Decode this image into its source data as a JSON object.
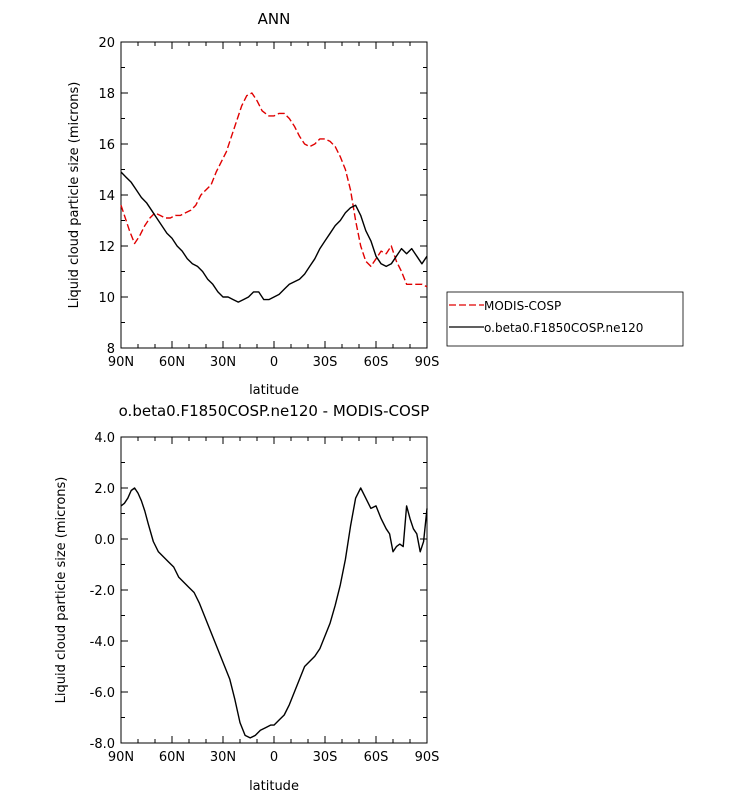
{
  "chart_data": [
    {
      "type": "line",
      "title": "ANN",
      "xlabel": "latitude",
      "ylabel": "Liquid cloud particle size (microns)",
      "x_ticks": [
        -90,
        -60,
        -30,
        0,
        30,
        60,
        90
      ],
      "x_tick_labels": [
        "90N",
        "60N",
        "30N",
        "0",
        "30S",
        "60S",
        "90S"
      ],
      "xlim": [
        -90,
        90
      ],
      "ylim": [
        8,
        20
      ],
      "y_ticks": [
        8,
        10,
        12,
        14,
        16,
        18,
        20
      ],
      "y_tick_labels": [
        "8",
        "10",
        "12",
        "14",
        "16",
        "18",
        "20"
      ],
      "legend": "outside-right",
      "series": [
        {
          "name": "MODIS-COSP",
          "color": "#e00000",
          "dash": "dashed",
          "x": [
            -90,
            -88,
            -85,
            -82,
            -79,
            -76,
            -73,
            -70,
            -67,
            -64,
            -61,
            -58,
            -55,
            -52,
            -49,
            -46,
            -43,
            -40,
            -37,
            -34,
            -31,
            -28,
            -25,
            -22,
            -19,
            -16,
            -13,
            -10,
            -7,
            -5,
            -3,
            0,
            3,
            6,
            9,
            12,
            15,
            18,
            21,
            24,
            27,
            30,
            33,
            36,
            39,
            42,
            45,
            48,
            51,
            54,
            57,
            60,
            63,
            66,
            69,
            72,
            75,
            78,
            81,
            84,
            87,
            90
          ],
          "y": [
            13.6,
            13.2,
            12.6,
            12.1,
            12.4,
            12.8,
            13.1,
            13.3,
            13.2,
            13.1,
            13.1,
            13.2,
            13.2,
            13.3,
            13.4,
            13.6,
            14.0,
            14.2,
            14.4,
            14.9,
            15.3,
            15.7,
            16.3,
            16.9,
            17.5,
            17.9,
            18.0,
            17.7,
            17.3,
            17.2,
            17.1,
            17.1,
            17.2,
            17.2,
            17.0,
            16.7,
            16.3,
            16.0,
            15.9,
            16.0,
            16.2,
            16.2,
            16.1,
            15.9,
            15.5,
            15.0,
            14.2,
            13.0,
            12.0,
            11.4,
            11.2,
            11.5,
            11.8,
            11.7,
            12.0,
            11.4,
            11.0,
            10.5,
            10.5,
            10.5,
            10.5,
            10.4
          ]
        },
        {
          "name": "o.beta0.F1850COSP.ne120",
          "color": "#000000",
          "dash": "solid",
          "x": [
            -90,
            -87,
            -84,
            -81,
            -78,
            -75,
            -72,
            -69,
            -66,
            -63,
            -60,
            -57,
            -54,
            -51,
            -48,
            -45,
            -42,
            -39,
            -36,
            -33,
            -30,
            -27,
            -24,
            -21,
            -18,
            -15,
            -12,
            -9,
            -6,
            -3,
            0,
            3,
            6,
            9,
            12,
            15,
            18,
            21,
            24,
            27,
            30,
            33,
            36,
            39,
            42,
            45,
            48,
            51,
            54,
            57,
            60,
            63,
            66,
            69,
            72,
            75,
            78,
            81,
            84,
            87,
            90
          ],
          "y": [
            14.9,
            14.7,
            14.5,
            14.2,
            13.9,
            13.7,
            13.4,
            13.1,
            12.8,
            12.5,
            12.3,
            12.0,
            11.8,
            11.5,
            11.3,
            11.2,
            11.0,
            10.7,
            10.5,
            10.2,
            10.0,
            10.0,
            9.9,
            9.8,
            9.9,
            10.0,
            10.2,
            10.2,
            9.9,
            9.9,
            10.0,
            10.1,
            10.3,
            10.5,
            10.6,
            10.7,
            10.9,
            11.2,
            11.5,
            11.9,
            12.2,
            12.5,
            12.8,
            13.0,
            13.3,
            13.5,
            13.6,
            13.2,
            12.6,
            12.2,
            11.6,
            11.3,
            11.2,
            11.3,
            11.6,
            11.9,
            11.7,
            11.9,
            11.6,
            11.3,
            11.6
          ]
        }
      ]
    },
    {
      "type": "line",
      "title": "o.beta0.F1850COSP.ne120 - MODIS-COSP",
      "xlabel": "latitude",
      "ylabel": "Liquid cloud particle size (microns)",
      "x_ticks": [
        -90,
        -60,
        -30,
        0,
        30,
        60,
        90
      ],
      "x_tick_labels": [
        "90N",
        "60N",
        "30N",
        "0",
        "30S",
        "60S",
        "90S"
      ],
      "xlim": [
        -90,
        90
      ],
      "ylim": [
        -8,
        4
      ],
      "y_ticks": [
        -8,
        -6,
        -4,
        -2,
        0,
        2,
        4
      ],
      "y_tick_labels": [
        "-8.0",
        "-6.0",
        "-4.0",
        "-2.0",
        "0.0",
        "2.0",
        "4.0"
      ],
      "series": [
        {
          "name": "o.beta0.F1850COSP.ne120 - MODIS-COSP",
          "color": "#000000",
          "dash": "solid",
          "x": [
            -90,
            -88,
            -86,
            -84,
            -82,
            -80,
            -78,
            -76,
            -74,
            -71,
            -68,
            -65,
            -62,
            -59,
            -56,
            -53,
            -50,
            -47,
            -44,
            -41,
            -38,
            -35,
            -32,
            -29,
            -26,
            -23,
            -20,
            -17,
            -14,
            -11,
            -8,
            -5,
            -2,
            0,
            3,
            6,
            9,
            12,
            15,
            18,
            21,
            24,
            27,
            30,
            33,
            36,
            39,
            42,
            45,
            48,
            51,
            54,
            57,
            60,
            63,
            66,
            68,
            70,
            72,
            74,
            76,
            78,
            80,
            82,
            84,
            86,
            88,
            90
          ],
          "y": [
            1.3,
            1.4,
            1.6,
            1.9,
            2.0,
            1.8,
            1.5,
            1.1,
            0.6,
            -0.1,
            -0.5,
            -0.7,
            -0.9,
            -1.1,
            -1.5,
            -1.7,
            -1.9,
            -2.1,
            -2.5,
            -3.0,
            -3.5,
            -4.0,
            -4.5,
            -5.0,
            -5.5,
            -6.3,
            -7.2,
            -7.7,
            -7.8,
            -7.7,
            -7.5,
            -7.4,
            -7.3,
            -7.3,
            -7.1,
            -6.9,
            -6.5,
            -6.0,
            -5.5,
            -5.0,
            -4.8,
            -4.6,
            -4.3,
            -3.8,
            -3.3,
            -2.6,
            -1.8,
            -0.8,
            0.5,
            1.6,
            2.0,
            1.6,
            1.2,
            1.3,
            0.8,
            0.4,
            0.2,
            -0.5,
            -0.3,
            -0.2,
            -0.3,
            1.3,
            0.8,
            0.4,
            0.2,
            -0.5,
            -0.1,
            1.2
          ]
        }
      ]
    }
  ]
}
